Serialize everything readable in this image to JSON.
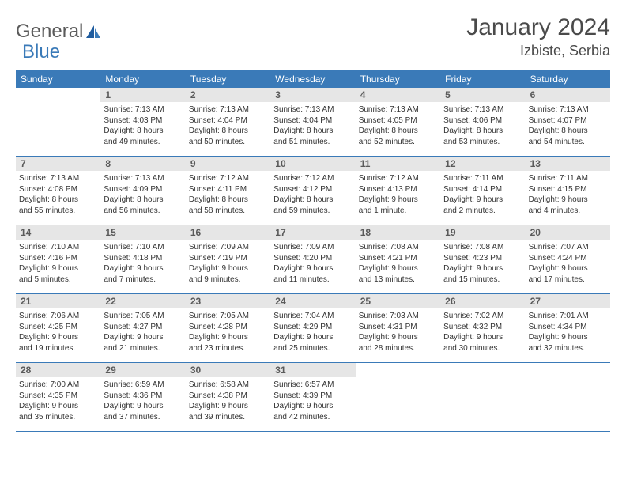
{
  "logo": {
    "text1": "General",
    "text2": "Blue"
  },
  "title": "January 2024",
  "location": "Izbiste, Serbia",
  "colors": {
    "header_bg": "#3a7ab8",
    "header_text": "#ffffff",
    "daynum_bg": "#e6e6e6",
    "daynum_text": "#5a5a5a",
    "row_border": "#3a7ab8",
    "body_text": "#333333"
  },
  "day_names": [
    "Sunday",
    "Monday",
    "Tuesday",
    "Wednesday",
    "Thursday",
    "Friday",
    "Saturday"
  ],
  "weeks": [
    [
      {
        "n": "",
        "sr": "",
        "ss": "",
        "dl1": "",
        "dl2": ""
      },
      {
        "n": "1",
        "sr": "Sunrise: 7:13 AM",
        "ss": "Sunset: 4:03 PM",
        "dl1": "Daylight: 8 hours",
        "dl2": "and 49 minutes."
      },
      {
        "n": "2",
        "sr": "Sunrise: 7:13 AM",
        "ss": "Sunset: 4:04 PM",
        "dl1": "Daylight: 8 hours",
        "dl2": "and 50 minutes."
      },
      {
        "n": "3",
        "sr": "Sunrise: 7:13 AM",
        "ss": "Sunset: 4:04 PM",
        "dl1": "Daylight: 8 hours",
        "dl2": "and 51 minutes."
      },
      {
        "n": "4",
        "sr": "Sunrise: 7:13 AM",
        "ss": "Sunset: 4:05 PM",
        "dl1": "Daylight: 8 hours",
        "dl2": "and 52 minutes."
      },
      {
        "n": "5",
        "sr": "Sunrise: 7:13 AM",
        "ss": "Sunset: 4:06 PM",
        "dl1": "Daylight: 8 hours",
        "dl2": "and 53 minutes."
      },
      {
        "n": "6",
        "sr": "Sunrise: 7:13 AM",
        "ss": "Sunset: 4:07 PM",
        "dl1": "Daylight: 8 hours",
        "dl2": "and 54 minutes."
      }
    ],
    [
      {
        "n": "7",
        "sr": "Sunrise: 7:13 AM",
        "ss": "Sunset: 4:08 PM",
        "dl1": "Daylight: 8 hours",
        "dl2": "and 55 minutes."
      },
      {
        "n": "8",
        "sr": "Sunrise: 7:13 AM",
        "ss": "Sunset: 4:09 PM",
        "dl1": "Daylight: 8 hours",
        "dl2": "and 56 minutes."
      },
      {
        "n": "9",
        "sr": "Sunrise: 7:12 AM",
        "ss": "Sunset: 4:11 PM",
        "dl1": "Daylight: 8 hours",
        "dl2": "and 58 minutes."
      },
      {
        "n": "10",
        "sr": "Sunrise: 7:12 AM",
        "ss": "Sunset: 4:12 PM",
        "dl1": "Daylight: 8 hours",
        "dl2": "and 59 minutes."
      },
      {
        "n": "11",
        "sr": "Sunrise: 7:12 AM",
        "ss": "Sunset: 4:13 PM",
        "dl1": "Daylight: 9 hours",
        "dl2": "and 1 minute."
      },
      {
        "n": "12",
        "sr": "Sunrise: 7:11 AM",
        "ss": "Sunset: 4:14 PM",
        "dl1": "Daylight: 9 hours",
        "dl2": "and 2 minutes."
      },
      {
        "n": "13",
        "sr": "Sunrise: 7:11 AM",
        "ss": "Sunset: 4:15 PM",
        "dl1": "Daylight: 9 hours",
        "dl2": "and 4 minutes."
      }
    ],
    [
      {
        "n": "14",
        "sr": "Sunrise: 7:10 AM",
        "ss": "Sunset: 4:16 PM",
        "dl1": "Daylight: 9 hours",
        "dl2": "and 5 minutes."
      },
      {
        "n": "15",
        "sr": "Sunrise: 7:10 AM",
        "ss": "Sunset: 4:18 PM",
        "dl1": "Daylight: 9 hours",
        "dl2": "and 7 minutes."
      },
      {
        "n": "16",
        "sr": "Sunrise: 7:09 AM",
        "ss": "Sunset: 4:19 PM",
        "dl1": "Daylight: 9 hours",
        "dl2": "and 9 minutes."
      },
      {
        "n": "17",
        "sr": "Sunrise: 7:09 AM",
        "ss": "Sunset: 4:20 PM",
        "dl1": "Daylight: 9 hours",
        "dl2": "and 11 minutes."
      },
      {
        "n": "18",
        "sr": "Sunrise: 7:08 AM",
        "ss": "Sunset: 4:21 PM",
        "dl1": "Daylight: 9 hours",
        "dl2": "and 13 minutes."
      },
      {
        "n": "19",
        "sr": "Sunrise: 7:08 AM",
        "ss": "Sunset: 4:23 PM",
        "dl1": "Daylight: 9 hours",
        "dl2": "and 15 minutes."
      },
      {
        "n": "20",
        "sr": "Sunrise: 7:07 AM",
        "ss": "Sunset: 4:24 PM",
        "dl1": "Daylight: 9 hours",
        "dl2": "and 17 minutes."
      }
    ],
    [
      {
        "n": "21",
        "sr": "Sunrise: 7:06 AM",
        "ss": "Sunset: 4:25 PM",
        "dl1": "Daylight: 9 hours",
        "dl2": "and 19 minutes."
      },
      {
        "n": "22",
        "sr": "Sunrise: 7:05 AM",
        "ss": "Sunset: 4:27 PM",
        "dl1": "Daylight: 9 hours",
        "dl2": "and 21 minutes."
      },
      {
        "n": "23",
        "sr": "Sunrise: 7:05 AM",
        "ss": "Sunset: 4:28 PM",
        "dl1": "Daylight: 9 hours",
        "dl2": "and 23 minutes."
      },
      {
        "n": "24",
        "sr": "Sunrise: 7:04 AM",
        "ss": "Sunset: 4:29 PM",
        "dl1": "Daylight: 9 hours",
        "dl2": "and 25 minutes."
      },
      {
        "n": "25",
        "sr": "Sunrise: 7:03 AM",
        "ss": "Sunset: 4:31 PM",
        "dl1": "Daylight: 9 hours",
        "dl2": "and 28 minutes."
      },
      {
        "n": "26",
        "sr": "Sunrise: 7:02 AM",
        "ss": "Sunset: 4:32 PM",
        "dl1": "Daylight: 9 hours",
        "dl2": "and 30 minutes."
      },
      {
        "n": "27",
        "sr": "Sunrise: 7:01 AM",
        "ss": "Sunset: 4:34 PM",
        "dl1": "Daylight: 9 hours",
        "dl2": "and 32 minutes."
      }
    ],
    [
      {
        "n": "28",
        "sr": "Sunrise: 7:00 AM",
        "ss": "Sunset: 4:35 PM",
        "dl1": "Daylight: 9 hours",
        "dl2": "and 35 minutes."
      },
      {
        "n": "29",
        "sr": "Sunrise: 6:59 AM",
        "ss": "Sunset: 4:36 PM",
        "dl1": "Daylight: 9 hours",
        "dl2": "and 37 minutes."
      },
      {
        "n": "30",
        "sr": "Sunrise: 6:58 AM",
        "ss": "Sunset: 4:38 PM",
        "dl1": "Daylight: 9 hours",
        "dl2": "and 39 minutes."
      },
      {
        "n": "31",
        "sr": "Sunrise: 6:57 AM",
        "ss": "Sunset: 4:39 PM",
        "dl1": "Daylight: 9 hours",
        "dl2": "and 42 minutes."
      },
      {
        "n": "",
        "sr": "",
        "ss": "",
        "dl1": "",
        "dl2": ""
      },
      {
        "n": "",
        "sr": "",
        "ss": "",
        "dl1": "",
        "dl2": ""
      },
      {
        "n": "",
        "sr": "",
        "ss": "",
        "dl1": "",
        "dl2": ""
      }
    ]
  ]
}
